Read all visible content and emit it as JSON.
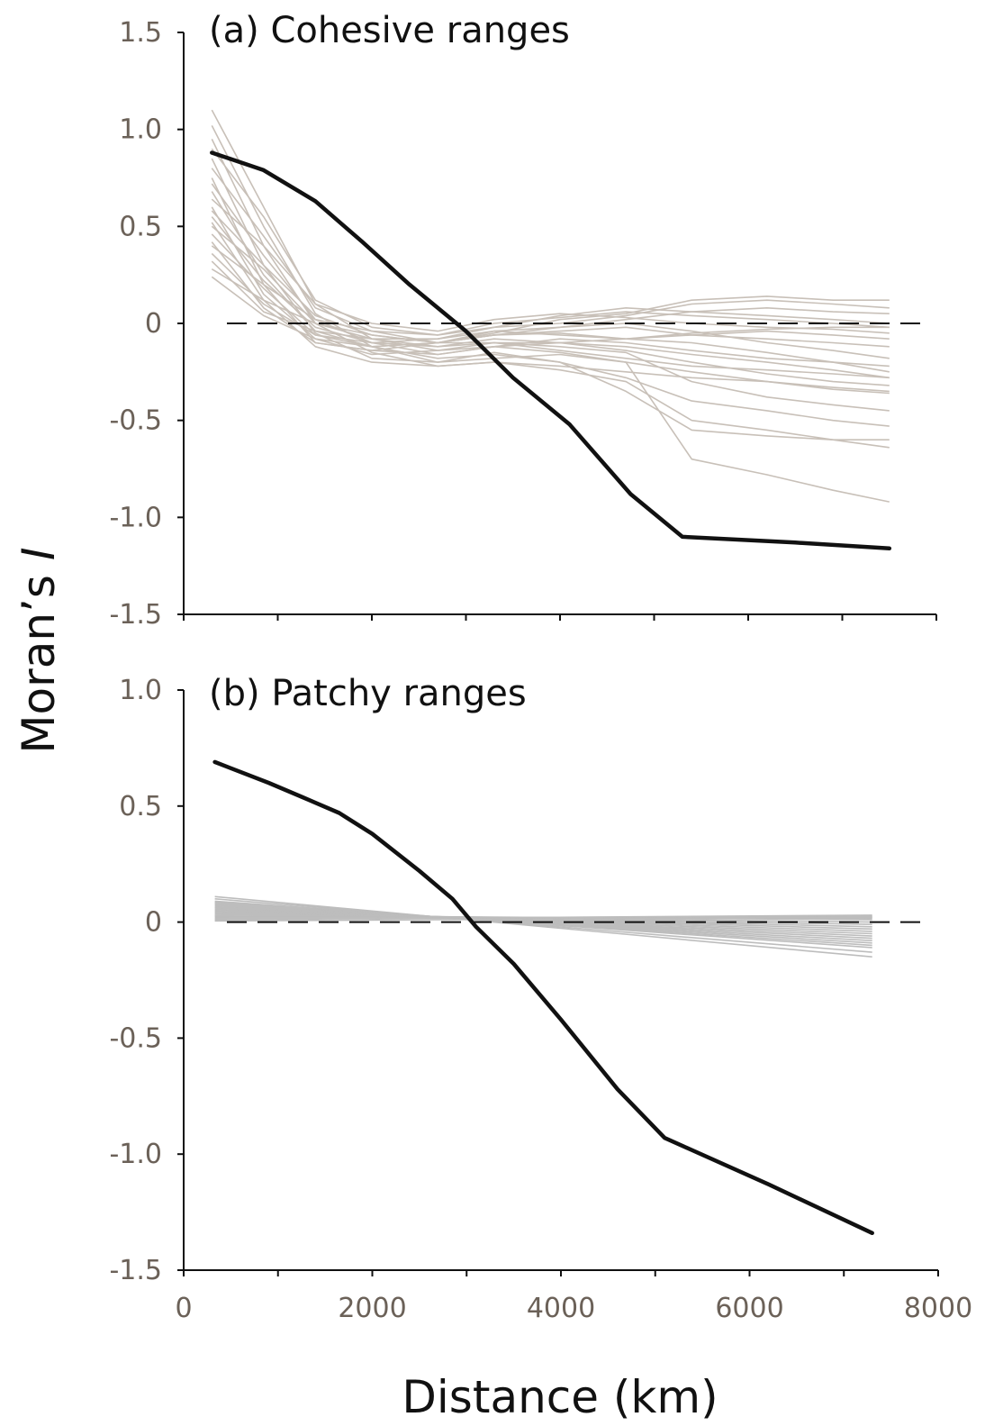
{
  "figure": {
    "ylabel_main": "Moran’s ",
    "ylabel_italic": "I",
    "xlabel": "Distance (km)"
  },
  "chart_data": [
    {
      "type": "line",
      "title": "(a) Cohesive ranges",
      "xlim": [
        0,
        8000
      ],
      "ylim": [
        -1.5,
        1.5
      ],
      "yticks": [
        1.5,
        1.0,
        0.5,
        0,
        -0.5,
        -1.0,
        -1.5
      ],
      "ytick_labels": [
        "1.5",
        "1.0",
        "0.5",
        "0",
        "-0.5",
        "-1.0",
        "-1.5"
      ],
      "xticks": [
        0,
        1000,
        2000,
        3000,
        4000,
        5000,
        6000,
        7000,
        8000
      ],
      "xtick_labels": [],
      "reference_line": 0,
      "null_color": "#c8c0b8",
      "observed_color": "#111111",
      "observed": {
        "x": [
          300,
          850,
          1400,
          1900,
          2400,
          3000,
          3500,
          4100,
          4750,
          5300,
          6500,
          7500
        ],
        "y": [
          0.88,
          0.79,
          0.63,
          0.42,
          0.2,
          -0.04,
          -0.28,
          -0.52,
          -0.88,
          -1.1,
          -1.13,
          -1.16
        ]
      },
      "null_x": [
        300,
        850,
        1400,
        2000,
        2700,
        3300,
        4000,
        4700,
        5400,
        6200,
        6900,
        7500
      ],
      "null_series": [
        [
          1.1,
          0.6,
          0.1,
          -0.08,
          -0.14,
          -0.12,
          -0.1,
          -0.08,
          -0.05,
          -0.03,
          -0.02,
          -0.02
        ],
        [
          1.02,
          0.5,
          0.05,
          -0.12,
          -0.2,
          -0.18,
          -0.16,
          -0.2,
          -0.7,
          -0.78,
          -0.86,
          -0.92
        ],
        [
          0.95,
          0.4,
          0.0,
          -0.15,
          -0.22,
          -0.2,
          -0.24,
          -0.3,
          -0.5,
          -0.55,
          -0.6,
          -0.64
        ],
        [
          0.9,
          0.55,
          0.12,
          -0.02,
          -0.06,
          -0.02,
          0.0,
          0.04,
          0.1,
          0.12,
          0.1,
          0.08
        ],
        [
          0.85,
          0.3,
          -0.05,
          -0.18,
          -0.2,
          -0.15,
          -0.2,
          -0.35,
          -0.55,
          -0.58,
          -0.6,
          -0.6
        ],
        [
          0.8,
          0.45,
          0.08,
          -0.04,
          -0.1,
          -0.06,
          -0.05,
          -0.08,
          -0.1,
          -0.15,
          -0.2,
          -0.25
        ],
        [
          0.75,
          0.2,
          -0.1,
          -0.14,
          -0.1,
          -0.05,
          0.02,
          0.05,
          0.12,
          0.14,
          0.12,
          0.12
        ],
        [
          0.72,
          0.35,
          0.02,
          -0.1,
          -0.16,
          -0.12,
          -0.15,
          -0.2,
          -0.25,
          -0.3,
          -0.34,
          -0.36
        ],
        [
          0.68,
          0.25,
          -0.04,
          -0.12,
          -0.18,
          -0.16,
          -0.2,
          -0.28,
          -0.4,
          -0.45,
          -0.5,
          -0.53
        ],
        [
          0.64,
          0.4,
          0.1,
          0.0,
          -0.04,
          0.02,
          0.05,
          0.03,
          0.0,
          -0.02,
          -0.03,
          -0.05
        ],
        [
          0.6,
          0.15,
          -0.08,
          -0.16,
          -0.14,
          -0.1,
          -0.12,
          -0.15,
          -0.3,
          -0.38,
          -0.42,
          -0.45
        ],
        [
          0.58,
          0.3,
          0.04,
          -0.06,
          -0.1,
          -0.04,
          -0.02,
          0.0,
          -0.04,
          -0.1,
          -0.14,
          -0.18
        ],
        [
          0.55,
          0.22,
          -0.02,
          -0.1,
          -0.08,
          -0.02,
          0.04,
          0.08,
          0.06,
          0.04,
          0.02,
          0.0
        ],
        [
          0.52,
          0.12,
          -0.12,
          -0.2,
          -0.22,
          -0.2,
          -0.22,
          -0.25,
          -0.28,
          -0.3,
          -0.33,
          -0.35
        ],
        [
          0.5,
          0.28,
          0.0,
          -0.08,
          -0.12,
          -0.08,
          -0.1,
          -0.12,
          -0.16,
          -0.2,
          -0.24,
          -0.28
        ],
        [
          0.46,
          0.18,
          -0.06,
          -0.12,
          -0.1,
          -0.06,
          -0.04,
          -0.02,
          -0.06,
          -0.08,
          -0.1,
          -0.12
        ],
        [
          0.42,
          0.08,
          -0.1,
          -0.14,
          -0.16,
          -0.12,
          -0.08,
          -0.1,
          -0.14,
          -0.18,
          -0.2,
          -0.22
        ],
        [
          0.4,
          0.2,
          0.02,
          -0.04,
          -0.06,
          0.0,
          0.03,
          0.06,
          0.04,
          0.02,
          0.0,
          -0.02
        ],
        [
          0.36,
          0.1,
          -0.06,
          -0.1,
          -0.12,
          -0.1,
          -0.1,
          -0.14,
          -0.2,
          -0.26,
          -0.3,
          -0.32
        ],
        [
          0.32,
          0.06,
          -0.04,
          -0.08,
          -0.08,
          -0.04,
          -0.06,
          -0.08,
          -0.06,
          -0.04,
          -0.06,
          -0.08
        ],
        [
          0.28,
          0.12,
          0.0,
          -0.06,
          -0.1,
          -0.1,
          -0.14,
          -0.18,
          -0.22,
          -0.24,
          -0.26,
          -0.28
        ],
        [
          0.24,
          0.04,
          -0.08,
          -0.12,
          -0.1,
          -0.06,
          -0.02,
          0.02,
          0.06,
          0.08,
          0.06,
          0.05
        ]
      ]
    },
    {
      "type": "line",
      "title": "(b) Patchy ranges",
      "xlim": [
        0,
        8000
      ],
      "ylim": [
        -1.5,
        1.0
      ],
      "yticks": [
        1.0,
        0.5,
        0,
        -0.5,
        -1.0,
        -1.5
      ],
      "ytick_labels": [
        "1.0",
        "0.5",
        "0",
        "-0.5",
        "-1.0",
        "-1.5"
      ],
      "xticks": [
        0,
        1000,
        2000,
        3000,
        4000,
        5000,
        6000,
        7000,
        8000
      ],
      "xtick_labels": [
        "0",
        "2000",
        "4000",
        "6000",
        "8000"
      ],
      "reference_line": 0,
      "null_color": "#bdbdbd",
      "observed_color": "#111111",
      "observed": {
        "x": [
          330,
          900,
          1250,
          1650,
          2000,
          2500,
          2850,
          3100,
          3500,
          4000,
          4600,
          5100,
          6200,
          7300
        ],
        "y": [
          0.69,
          0.6,
          0.54,
          0.47,
          0.38,
          0.22,
          0.1,
          -0.02,
          -0.18,
          -0.42,
          -0.72,
          -0.93,
          -1.13,
          -1.34
        ]
      },
      "null_x": [
        330,
        7300
      ],
      "null_series": [
        [
          0.11,
          -0.15
        ],
        [
          0.1,
          -0.13
        ],
        [
          0.09,
          -0.11
        ],
        [
          0.085,
          -0.1
        ],
        [
          0.08,
          -0.09
        ],
        [
          0.075,
          -0.08
        ],
        [
          0.07,
          -0.07
        ],
        [
          0.065,
          -0.06
        ],
        [
          0.06,
          -0.05
        ],
        [
          0.055,
          -0.04
        ],
        [
          0.05,
          -0.03
        ],
        [
          0.045,
          -0.02
        ],
        [
          0.04,
          -0.01
        ],
        [
          0.035,
          0.0
        ],
        [
          0.03,
          0.01
        ],
        [
          0.025,
          0.015
        ],
        [
          0.02,
          0.02
        ],
        [
          0.015,
          0.025
        ],
        [
          0.01,
          0.03
        ],
        [
          0.005,
          0.02
        ]
      ]
    }
  ]
}
